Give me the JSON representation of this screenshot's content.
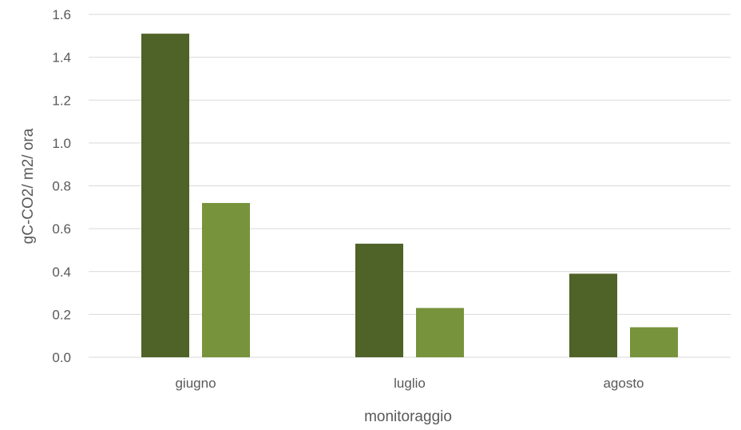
{
  "chart_data": {
    "type": "bar",
    "title": "",
    "xlabel": "monitoraggio",
    "ylabel": "gC-CO2/ m2/ ora",
    "categories": [
      "giugno",
      "luglio",
      "agosto"
    ],
    "series": [
      {
        "values": [
          1.51,
          0.53,
          0.39
        ],
        "color": "#4f6228"
      },
      {
        "values": [
          0.72,
          0.23,
          0.14
        ],
        "color": "#77933c"
      }
    ],
    "ylim": [
      0,
      1.6
    ],
    "yticks": [
      "0.0",
      "0.2",
      "0.4",
      "0.6",
      "0.8",
      "1.0",
      "1.2",
      "1.4",
      "1.6"
    ],
    "grid": true,
    "legend": "none"
  }
}
